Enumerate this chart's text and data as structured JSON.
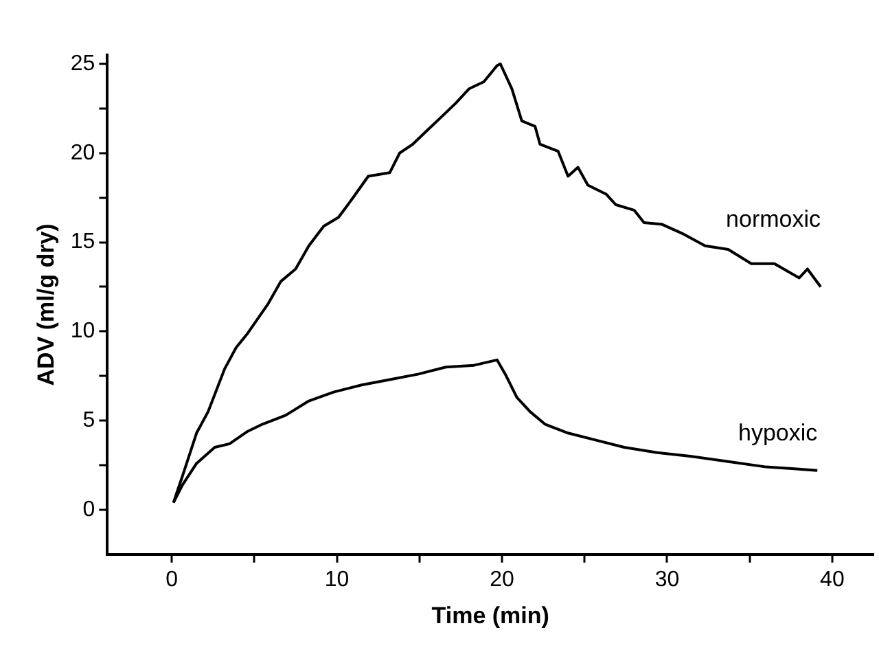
{
  "chart_data": {
    "type": "line",
    "xlabel": "Time (min)",
    "ylabel": "ADV (ml/g dry)",
    "xlim": [
      -3.9,
      42.5
    ],
    "xticks": [
      0,
      {
        "value": 5,
        "label": null
      },
      10,
      {
        "value": 15,
        "label": null
      },
      20,
      {
        "value": 25,
        "label": null
      },
      30,
      {
        "value": 35,
        "label": null
      },
      40
    ],
    "ylim": [
      -2.5,
      25.5
    ],
    "yticks": [
      0,
      {
        "value": 2.5,
        "label": null
      },
      5,
      {
        "value": 7.5,
        "label": null
      },
      10,
      {
        "value": 12.5,
        "label": null
      },
      15,
      {
        "value": 17.5,
        "label": null
      },
      20,
      {
        "value": 22.5,
        "label": null
      },
      25
    ],
    "grid": false,
    "legend": false,
    "marker": "none",
    "line_style": "solid",
    "series": [
      {
        "name": "normoxic",
        "color": "#000000",
        "x": [
          0.1,
          0.65,
          1.5,
          2.2,
          3.2,
          3.9,
          4.6,
          5.8,
          6.6,
          7.5,
          8.3,
          9.2,
          10.1,
          10.9,
          11.9,
          13.2,
          13.8,
          14.6,
          15.5,
          16.3,
          17.2,
          18.0,
          18.9,
          19.7,
          19.9,
          20.6,
          21.2,
          22.0,
          22.3,
          23.4,
          24.0,
          24.6,
          25.2,
          26.3,
          26.9,
          28.0,
          28.6,
          29.7,
          30.9,
          32.3,
          33.7,
          35.1,
          36.5,
          38.0,
          38.5,
          39.3
        ],
        "values": [
          0.4,
          1.9,
          4.3,
          5.5,
          7.9,
          9.1,
          9.9,
          11.5,
          12.8,
          13.5,
          14.8,
          15.9,
          16.4,
          17.4,
          18.7,
          18.9,
          20.0,
          20.5,
          21.3,
          22.0,
          22.8,
          23.6,
          24.0,
          24.9,
          25.0,
          23.6,
          21.8,
          21.5,
          20.5,
          20.1,
          18.7,
          19.2,
          18.2,
          17.7,
          17.1,
          16.8,
          16.1,
          16.0,
          15.5,
          14.8,
          14.6,
          13.8,
          13.8,
          13.0,
          13.5,
          12.5
        ]
      },
      {
        "name": "hypoxic",
        "color": "#000000",
        "x": [
          0.1,
          0.65,
          1.5,
          2.6,
          3.5,
          4.6,
          5.5,
          6.9,
          8.3,
          9.8,
          11.5,
          13.2,
          14.9,
          16.6,
          18.3,
          19.7,
          20.2,
          20.9,
          21.7,
          22.6,
          24.0,
          25.7,
          27.4,
          29.4,
          31.4,
          33.7,
          36.0,
          37.7,
          39.1
        ],
        "values": [
          0.4,
          1.4,
          2.6,
          3.5,
          3.7,
          4.4,
          4.8,
          5.3,
          6.1,
          6.6,
          7.0,
          7.3,
          7.6,
          8.0,
          8.1,
          8.4,
          7.6,
          6.3,
          5.5,
          4.8,
          4.3,
          3.9,
          3.5,
          3.2,
          3.0,
          2.7,
          2.4,
          2.3,
          2.2
        ]
      }
    ]
  }
}
